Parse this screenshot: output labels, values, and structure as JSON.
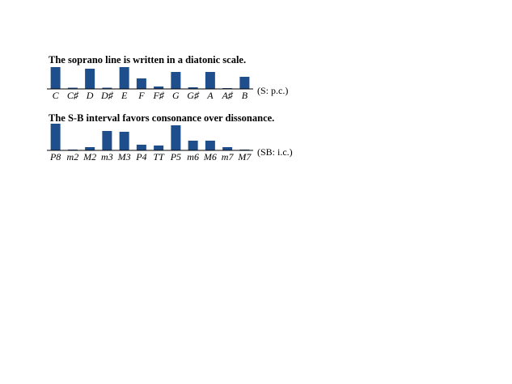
{
  "chart_data": [
    {
      "type": "bar",
      "title": "The soprano line is written in a diatonic scale.",
      "categories": [
        "C",
        "C♯",
        "D",
        "D♯",
        "E",
        "F",
        "F♯",
        "G",
        "G♯",
        "A",
        "A♯",
        "B"
      ],
      "values": [
        27,
        1.5,
        25,
        1.5,
        27,
        13,
        3,
        21,
        2,
        21,
        1,
        15
      ],
      "color": "#1f4e8c",
      "ylim": [
        0,
        35
      ],
      "annotation": "(S: p.c.)"
    },
    {
      "type": "bar",
      "title": "The S-B interval favors consonance over dissonance.",
      "categories": [
        "P8",
        "m2",
        "M2",
        "m3",
        "M3",
        "P4",
        "TT",
        "P5",
        "m6",
        "M6",
        "m7",
        "M7"
      ],
      "values": [
        33,
        1,
        4,
        24,
        23,
        7,
        6,
        31,
        12,
        12,
        4,
        1
      ],
      "color": "#1f4e8c",
      "ylim": [
        0,
        35
      ],
      "annotation": "(SB: i.c.)"
    }
  ]
}
